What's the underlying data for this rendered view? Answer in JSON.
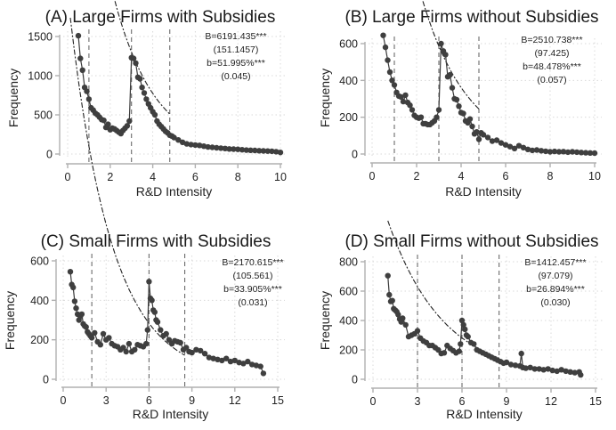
{
  "chart_data": [
    {
      "type": "scatter",
      "panel": "A",
      "title": "(A) Large Firms with Subsidies",
      "xlabel": "R&D Intensity",
      "ylabel": "Frequency",
      "xlim": [
        0,
        10
      ],
      "ylim": [
        0,
        1500
      ],
      "xticks": [
        "0",
        "2",
        "4",
        "6",
        "8",
        "10"
      ],
      "yticks": [
        "0",
        "500",
        "1000",
        "1500"
      ],
      "xtick_values": [
        0,
        2,
        4,
        6,
        8,
        10
      ],
      "ytick_values": [
        0,
        500,
        1000,
        1500
      ],
      "grid": true,
      "reference_lines_x": [
        1,
        3,
        4.8
      ],
      "annotations": [
        "B=6191.435***",
        "(151.1457)",
        "b=51.995%***",
        "(0.045)"
      ],
      "fit": {
        "B": 6191.435,
        "b": 0.51995,
        "x_start": 0.5,
        "x_end": 4.8
      },
      "series": [
        {
          "name": "frequency",
          "x": [
            0.5,
            0.6,
            0.7,
            0.8,
            0.9,
            1.0,
            1.1,
            1.2,
            1.3,
            1.4,
            1.5,
            1.6,
            1.7,
            1.8,
            1.9,
            2.0,
            2.1,
            2.2,
            2.3,
            2.4,
            2.5,
            2.6,
            2.7,
            2.8,
            2.9,
            3.0,
            3.1,
            3.2,
            3.3,
            3.4,
            3.5,
            3.6,
            3.7,
            3.8,
            3.9,
            4.0,
            4.1,
            4.2,
            4.3,
            4.4,
            4.5,
            4.6,
            4.7,
            4.8,
            4.9,
            5.0,
            5.2,
            5.4,
            5.6,
            5.8,
            6.0,
            6.2,
            6.4,
            6.6,
            6.8,
            7.0,
            7.2,
            7.4,
            7.6,
            7.8,
            8.0,
            8.2,
            8.4,
            8.6,
            8.8,
            9.0,
            9.2,
            9.4,
            9.6,
            9.8,
            10.0
          ],
          "y": [
            1510,
            1220,
            1070,
            850,
            800,
            700,
            590,
            560,
            520,
            500,
            470,
            440,
            430,
            340,
            380,
            310,
            330,
            320,
            300,
            280,
            260,
            300,
            330,
            360,
            420,
            1230,
            1220,
            1160,
            980,
            960,
            850,
            780,
            700,
            640,
            590,
            540,
            500,
            420,
            380,
            350,
            320,
            290,
            270,
            240,
            230,
            210,
            180,
            150,
            130,
            120,
            115,
            110,
            100,
            90,
            85,
            80,
            75,
            70,
            65,
            62,
            60,
            55,
            50,
            48,
            45,
            42,
            40,
            38,
            35,
            30,
            20
          ]
        }
      ]
    },
    {
      "type": "scatter",
      "panel": "B",
      "title": "(B) Large Firms without Subsidies",
      "xlabel": "R&D Intensity",
      "ylabel": "Frequency",
      "xlim": [
        0,
        10
      ],
      "ylim": [
        0,
        600
      ],
      "xticks": [
        "0",
        "2",
        "4",
        "6",
        "8",
        "10"
      ],
      "yticks": [
        "0",
        "200",
        "400",
        "600"
      ],
      "xtick_values": [
        0,
        2,
        4,
        6,
        8,
        10
      ],
      "ytick_values": [
        0,
        200,
        400,
        600
      ],
      "grid": true,
      "reference_lines_x": [
        1,
        3,
        4.8
      ],
      "annotations": [
        "B=2510.738***",
        "(97.425)",
        "b=48.478%***",
        "(0.057)"
      ],
      "fit": {
        "B": 2510.738,
        "b": 0.48478,
        "x_start": 0.5,
        "x_end": 4.8
      },
      "series": [
        {
          "name": "frequency",
          "x": [
            0.5,
            0.6,
            0.7,
            0.8,
            0.9,
            1.0,
            1.1,
            1.2,
            1.3,
            1.4,
            1.5,
            1.6,
            1.7,
            1.8,
            1.9,
            2.0,
            2.1,
            2.2,
            2.3,
            2.4,
            2.5,
            2.6,
            2.7,
            2.8,
            2.9,
            3.0,
            3.1,
            3.2,
            3.3,
            3.4,
            3.5,
            3.6,
            3.7,
            3.8,
            3.9,
            4.0,
            4.1,
            4.2,
            4.3,
            4.4,
            4.5,
            4.6,
            4.7,
            4.8,
            4.9,
            5.0,
            5.2,
            5.4,
            5.6,
            5.8,
            6.0,
            6.2,
            6.4,
            6.6,
            6.8,
            7.0,
            7.2,
            7.4,
            7.6,
            7.8,
            8.0,
            8.2,
            8.4,
            8.6,
            8.8,
            9.0,
            9.2,
            9.4,
            9.6,
            9.8,
            10.0
          ],
          "y": [
            645,
            580,
            510,
            445,
            400,
            375,
            335,
            315,
            310,
            285,
            320,
            280,
            265,
            240,
            210,
            200,
            195,
            200,
            165,
            165,
            160,
            160,
            170,
            180,
            200,
            240,
            600,
            560,
            540,
            420,
            430,
            360,
            300,
            295,
            260,
            225,
            220,
            180,
            170,
            190,
            150,
            110,
            120,
            80,
            115,
            105,
            90,
            70,
            75,
            60,
            50,
            40,
            30,
            45,
            35,
            25,
            20,
            22,
            18,
            15,
            12,
            14,
            12,
            13,
            10,
            12,
            10,
            8,
            7,
            6,
            5
          ]
        }
      ]
    },
    {
      "type": "scatter",
      "panel": "C",
      "title": "(C) Small Firms with Subsidies",
      "xlabel": "R&D Intensity",
      "ylabel": "Frequency",
      "xlim": [
        0,
        15
      ],
      "ylim": [
        0,
        600
      ],
      "xticks": [
        "0",
        "3",
        "6",
        "9",
        "12",
        "15"
      ],
      "yticks": [
        "0",
        "200",
        "400",
        "600"
      ],
      "xtick_values": [
        0,
        3,
        6,
        9,
        12,
        15
      ],
      "ytick_values": [
        0,
        200,
        400,
        600
      ],
      "grid": true,
      "reference_lines_x": [
        2,
        6,
        8.5
      ],
      "annotations": [
        "B=2170.615***",
        "(105.561)",
        "b=33.905%***",
        "(0.031)"
      ],
      "fit": {
        "B": 2170.615,
        "b": 0.33905,
        "x_start": 0.5,
        "x_end": 8.5
      },
      "series": [
        {
          "name": "frequency",
          "x": [
            0.5,
            0.6,
            0.7,
            0.8,
            0.9,
            1.0,
            1.1,
            1.2,
            1.3,
            1.4,
            1.5,
            1.6,
            1.7,
            1.8,
            1.9,
            2.0,
            2.2,
            2.4,
            2.6,
            2.8,
            3.0,
            3.2,
            3.4,
            3.6,
            3.8,
            4.0,
            4.2,
            4.4,
            4.6,
            4.8,
            5.0,
            5.2,
            5.4,
            5.6,
            5.8,
            5.9,
            6.0,
            6.1,
            6.2,
            6.3,
            6.4,
            6.5,
            6.6,
            6.8,
            7.0,
            7.2,
            7.4,
            7.6,
            7.8,
            8.0,
            8.2,
            8.4,
            8.6,
            8.8,
            9.0,
            9.3,
            9.6,
            9.9,
            10.2,
            10.5,
            10.8,
            11.1,
            11.4,
            11.7,
            12.0,
            12.3,
            12.6,
            12.9,
            13.2,
            13.5,
            13.8,
            14.0
          ],
          "y": [
            545,
            480,
            465,
            395,
            360,
            330,
            300,
            320,
            330,
            280,
            270,
            265,
            240,
            230,
            220,
            210,
            235,
            190,
            175,
            230,
            200,
            210,
            180,
            170,
            165,
            150,
            160,
            140,
            180,
            140,
            150,
            175,
            170,
            165,
            180,
            250,
            495,
            410,
            400,
            350,
            340,
            300,
            290,
            250,
            220,
            230,
            200,
            180,
            195,
            190,
            185,
            150,
            160,
            140,
            135,
            150,
            145,
            130,
            110,
            105,
            100,
            95,
            105,
            90,
            95,
            85,
            80,
            90,
            75,
            70,
            65,
            30
          ]
        }
      ]
    },
    {
      "type": "scatter",
      "panel": "D",
      "title": "(D) Small Firms without Subsidies",
      "xlabel": "R&D Intensity",
      "ylabel": "Frequency",
      "xlim": [
        0,
        15
      ],
      "ylim": [
        0,
        800
      ],
      "xticks": [
        "0",
        "3",
        "6",
        "9",
        "12",
        "15"
      ],
      "yticks": [
        "0",
        "200",
        "400",
        "600",
        "800"
      ],
      "xtick_values": [
        0,
        3,
        6,
        9,
        12,
        15
      ],
      "ytick_values": [
        0,
        200,
        400,
        600,
        800
      ],
      "grid": true,
      "reference_lines_x": [
        3,
        6,
        8.5
      ],
      "annotations": [
        "B=1412.457***",
        "(97.079)",
        "b=26.894%***",
        "(0.030)"
      ],
      "fit": {
        "B": 1412.457,
        "b": 0.26894,
        "x_start": 1.0,
        "x_end": 8.5
      },
      "series": [
        {
          "name": "frequency",
          "x": [
            1.0,
            1.1,
            1.2,
            1.3,
            1.4,
            1.5,
            1.6,
            1.7,
            1.8,
            1.9,
            2.0,
            2.2,
            2.4,
            2.6,
            2.8,
            3.0,
            3.2,
            3.4,
            3.6,
            3.8,
            4.0,
            4.2,
            4.4,
            4.6,
            4.8,
            5.0,
            5.2,
            5.4,
            5.6,
            5.8,
            5.9,
            6.0,
            6.1,
            6.2,
            6.3,
            6.4,
            6.6,
            6.8,
            7.0,
            7.2,
            7.4,
            7.6,
            7.8,
            8.0,
            8.2,
            8.4,
            8.6,
            8.8,
            9.0,
            9.3,
            9.6,
            9.9,
            10.0,
            10.1,
            10.3,
            10.6,
            10.9,
            11.2,
            11.5,
            11.8,
            12.1,
            12.4,
            12.7,
            13.0,
            13.3,
            13.6,
            13.9,
            14.0
          ],
          "y": [
            705,
            575,
            530,
            535,
            480,
            470,
            460,
            440,
            410,
            390,
            415,
            370,
            290,
            300,
            310,
            330,
            280,
            260,
            250,
            230,
            230,
            215,
            200,
            175,
            180,
            230,
            210,
            195,
            180,
            190,
            240,
            400,
            370,
            340,
            300,
            290,
            250,
            240,
            200,
            190,
            180,
            170,
            160,
            150,
            140,
            130,
            120,
            110,
            115,
            100,
            95,
            90,
            175,
            80,
            75,
            80,
            70,
            70,
            65,
            70,
            60,
            55,
            65,
            55,
            50,
            45,
            50,
            30
          ]
        }
      ]
    }
  ]
}
